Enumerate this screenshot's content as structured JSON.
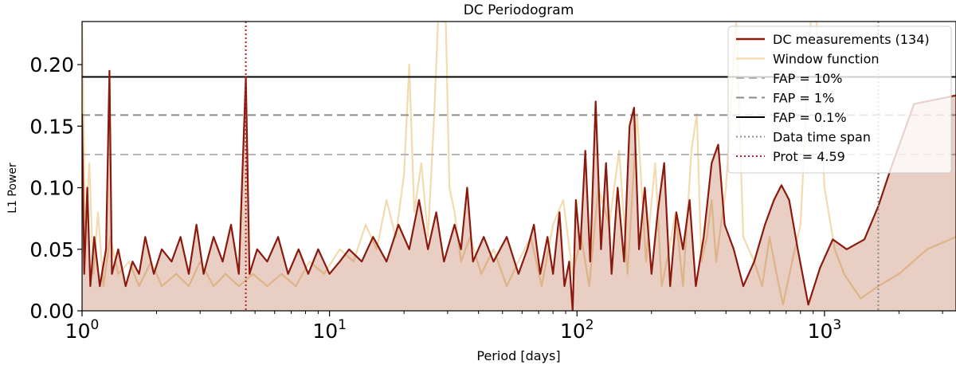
{
  "chart_data": {
    "type": "line",
    "title": "DC Periodogram",
    "xlabel": "Period [days]",
    "ylabel": "L1 Power",
    "x_scale": "log",
    "xlim": [
      1,
      3400
    ],
    "ylim": [
      0,
      0.235
    ],
    "xticks": [
      {
        "base": "10",
        "exp": "0",
        "value": 1
      },
      {
        "base": "10",
        "exp": "1",
        "value": 10
      },
      {
        "base": "10",
        "exp": "2",
        "value": 100
      },
      {
        "base": "10",
        "exp": "3",
        "value": 1000
      }
    ],
    "yticks": [
      {
        "label": "0.00",
        "value": 0.0
      },
      {
        "label": "0.05",
        "value": 0.05
      },
      {
        "label": "0.10",
        "value": 0.1
      },
      {
        "label": "0.15",
        "value": 0.15
      },
      {
        "label": "0.20",
        "value": 0.2
      }
    ],
    "grid": false,
    "legend_position": "top-right",
    "series": [
      {
        "name": "DC measurements (134)",
        "color": "#8b1a0e",
        "fill_color": "#a53a10",
        "points": [
          [
            1.0,
            0.16
          ],
          [
            1.02,
            0.03
          ],
          [
            1.05,
            0.1
          ],
          [
            1.08,
            0.02
          ],
          [
            1.12,
            0.06
          ],
          [
            1.18,
            0.02
          ],
          [
            1.25,
            0.05
          ],
          [
            1.29,
            0.195
          ],
          [
            1.32,
            0.03
          ],
          [
            1.4,
            0.05
          ],
          [
            1.5,
            0.02
          ],
          [
            1.6,
            0.04
          ],
          [
            1.7,
            0.03
          ],
          [
            1.8,
            0.06
          ],
          [
            1.95,
            0.03
          ],
          [
            2.1,
            0.05
          ],
          [
            2.3,
            0.04
          ],
          [
            2.5,
            0.06
          ],
          [
            2.7,
            0.03
          ],
          [
            2.9,
            0.07
          ],
          [
            3.1,
            0.03
          ],
          [
            3.4,
            0.06
          ],
          [
            3.7,
            0.04
          ],
          [
            4.0,
            0.07
          ],
          [
            4.3,
            0.03
          ],
          [
            4.59,
            0.19
          ],
          [
            4.75,
            0.03
          ],
          [
            5.1,
            0.05
          ],
          [
            5.6,
            0.04
          ],
          [
            6.2,
            0.06
          ],
          [
            6.8,
            0.03
          ],
          [
            7.5,
            0.05
          ],
          [
            8.2,
            0.03
          ],
          [
            9.0,
            0.05
          ],
          [
            10.0,
            0.03
          ],
          [
            11.0,
            0.04
          ],
          [
            12.0,
            0.05
          ],
          [
            13.5,
            0.04
          ],
          [
            15.0,
            0.06
          ],
          [
            17.0,
            0.04
          ],
          [
            19.0,
            0.07
          ],
          [
            21.0,
            0.05
          ],
          [
            23.0,
            0.09
          ],
          [
            25.0,
            0.05
          ],
          [
            27.0,
            0.08
          ],
          [
            29.0,
            0.04
          ],
          [
            32.0,
            0.07
          ],
          [
            34.0,
            0.05
          ],
          [
            36.0,
            0.1
          ],
          [
            38.0,
            0.04
          ],
          [
            42.0,
            0.06
          ],
          [
            46.0,
            0.04
          ],
          [
            52.0,
            0.06
          ],
          [
            58.0,
            0.03
          ],
          [
            63.0,
            0.05
          ],
          [
            67.0,
            0.07
          ],
          [
            71.0,
            0.03
          ],
          [
            76.0,
            0.06
          ],
          [
            80.0,
            0.03
          ],
          [
            85.0,
            0.08
          ],
          [
            89.0,
            0.02
          ],
          [
            93.0,
            0.04
          ],
          [
            96.0,
            0.0
          ],
          [
            99.0,
            0.09
          ],
          [
            103.0,
            0.05
          ],
          [
            108.0,
            0.13
          ],
          [
            113.0,
            0.04
          ],
          [
            119.0,
            0.17
          ],
          [
            125.0,
            0.05
          ],
          [
            131.0,
            0.12
          ],
          [
            138.0,
            0.03
          ],
          [
            146.0,
            0.1
          ],
          [
            155.0,
            0.04
          ],
          [
            163.0,
            0.15
          ],
          [
            170.0,
            0.165
          ],
          [
            178.0,
            0.05
          ],
          [
            188.0,
            0.1
          ],
          [
            200.0,
            0.03
          ],
          [
            212.0,
            0.08
          ],
          [
            225.0,
            0.12
          ],
          [
            238.0,
            0.02
          ],
          [
            252.0,
            0.08
          ],
          [
            268.0,
            0.05
          ],
          [
            285.0,
            0.09
          ],
          [
            302.0,
            0.02
          ],
          [
            325.0,
            0.06
          ],
          [
            350.0,
            0.12
          ],
          [
            372.0,
            0.135
          ],
          [
            395.0,
            0.07
          ],
          [
            430.0,
            0.05
          ],
          [
            470.0,
            0.02
          ],
          [
            520.0,
            0.04
          ],
          [
            575.0,
            0.07
          ],
          [
            625.0,
            0.09
          ],
          [
            670.0,
            0.102
          ],
          [
            720.0,
            0.09
          ],
          [
            780.0,
            0.05
          ],
          [
            860.0,
            0.005
          ],
          [
            960.0,
            0.035
          ],
          [
            1080.0,
            0.058
          ],
          [
            1230.0,
            0.05
          ],
          [
            1450.0,
            0.058
          ],
          [
            1650.0,
            0.085
          ],
          [
            1850.0,
            0.115
          ],
          [
            2300.0,
            0.168
          ],
          [
            3400.0,
            0.175
          ]
        ]
      },
      {
        "name": "Window function",
        "color": "#f3dbb0",
        "points": [
          [
            1.0,
            0.24
          ],
          [
            1.03,
            0.06
          ],
          [
            1.07,
            0.12
          ],
          [
            1.11,
            0.03
          ],
          [
            1.16,
            0.08
          ],
          [
            1.22,
            0.02
          ],
          [
            1.3,
            0.06
          ],
          [
            1.4,
            0.03
          ],
          [
            1.55,
            0.04
          ],
          [
            1.7,
            0.02
          ],
          [
            1.9,
            0.04
          ],
          [
            2.1,
            0.02
          ],
          [
            2.4,
            0.03
          ],
          [
            2.7,
            0.02
          ],
          [
            3.0,
            0.04
          ],
          [
            3.4,
            0.02
          ],
          [
            3.8,
            0.03
          ],
          [
            4.3,
            0.02
          ],
          [
            4.9,
            0.03
          ],
          [
            5.6,
            0.02
          ],
          [
            6.4,
            0.03
          ],
          [
            7.3,
            0.02
          ],
          [
            8.3,
            0.04
          ],
          [
            9.5,
            0.03
          ],
          [
            11.0,
            0.05
          ],
          [
            12.5,
            0.04
          ],
          [
            14.0,
            0.07
          ],
          [
            15.5,
            0.05
          ],
          [
            17.0,
            0.09
          ],
          [
            18.5,
            0.06
          ],
          [
            20.0,
            0.11
          ],
          [
            21.0,
            0.2
          ],
          [
            22.0,
            0.08
          ],
          [
            23.5,
            0.12
          ],
          [
            25.0,
            0.06
          ],
          [
            26.5,
            0.16
          ],
          [
            27.5,
            0.24
          ],
          [
            28.5,
            0.235
          ],
          [
            29.5,
            0.235
          ],
          [
            30.5,
            0.1
          ],
          [
            32.0,
            0.08
          ],
          [
            34.0,
            0.04
          ],
          [
            37.0,
            0.06
          ],
          [
            41.0,
            0.03
          ],
          [
            46.0,
            0.05
          ],
          [
            52.0,
            0.02
          ],
          [
            58.0,
            0.04
          ],
          [
            65.0,
            0.06
          ],
          [
            72.0,
            0.02
          ],
          [
            80.0,
            0.07
          ],
          [
            88.0,
            0.09
          ],
          [
            96.0,
            0.03
          ],
          [
            104.0,
            0.06
          ],
          [
            112.0,
            0.02
          ],
          [
            122.0,
            0.1
          ],
          [
            135.0,
            0.07
          ],
          [
            148.0,
            0.13
          ],
          [
            160.0,
            0.03
          ],
          [
            175.0,
            0.16
          ],
          [
            190.0,
            0.04
          ],
          [
            207.0,
            0.12
          ],
          [
            220.0,
            0.02
          ],
          [
            236.0,
            0.05
          ],
          [
            250.0,
            0.08
          ],
          [
            268.0,
            0.02
          ],
          [
            290.0,
            0.13
          ],
          [
            305.0,
            0.16
          ],
          [
            318.0,
            0.04
          ],
          [
            335.0,
            0.06
          ],
          [
            350.0,
            0.09
          ],
          [
            365.0,
            0.04
          ],
          [
            400.0,
            0.1
          ],
          [
            440.0,
            0.235
          ],
          [
            470.0,
            0.06
          ],
          [
            520.0,
            0.04
          ],
          [
            560.0,
            0.02
          ],
          [
            600.0,
            0.06
          ],
          [
            640.0,
            0.03
          ],
          [
            680.0,
            0.005
          ],
          [
            740.0,
            0.04
          ],
          [
            800.0,
            0.07
          ],
          [
            880.0,
            0.235
          ],
          [
            930.0,
            0.235
          ],
          [
            1000.0,
            0.1
          ],
          [
            1100.0,
            0.05
          ],
          [
            1200.0,
            0.03
          ],
          [
            1400.0,
            0.01
          ],
          [
            1650.0,
            0.02
          ],
          [
            2000.0,
            0.03
          ],
          [
            2600.0,
            0.05
          ],
          [
            3400.0,
            0.06
          ]
        ]
      }
    ],
    "hlines": [
      {
        "name": "FAP = 10%",
        "y": 0.127,
        "color": "#b3b3b3",
        "style": "dashed"
      },
      {
        "name": "FAP = 1%",
        "y": 0.159,
        "color": "#8c8c8c",
        "style": "dashed"
      },
      {
        "name": "FAP = 0.1%",
        "y": 0.19,
        "color": "#000000",
        "style": "solid"
      }
    ],
    "vlines": [
      {
        "name": "Data time span",
        "x": 1650,
        "color": "#8c8c8c",
        "style": "dotted"
      },
      {
        "name": "Prot = 4.59",
        "x": 4.59,
        "color": "#b22222",
        "style": "dotted"
      }
    ],
    "legend": [
      {
        "label": "DC measurements (134)",
        "color": "#8b1a0e",
        "style": "solid",
        "width": 2.5
      },
      {
        "label": "Window function",
        "color": "#f3dbb0",
        "style": "solid",
        "width": 2.5
      },
      {
        "label": "FAP = 10%",
        "color": "#b3b3b3",
        "style": "dashed",
        "width": 2
      },
      {
        "label": "FAP = 1%",
        "color": "#8c8c8c",
        "style": "dashed",
        "width": 2
      },
      {
        "label": "FAP = 0.1%",
        "color": "#000000",
        "style": "solid",
        "width": 2
      },
      {
        "label": "Data time span",
        "color": "#8c8c8c",
        "style": "dotted",
        "width": 2
      },
      {
        "label": "Prot = 4.59",
        "color": "#b22222",
        "style": "dotted",
        "width": 2
      }
    ]
  }
}
